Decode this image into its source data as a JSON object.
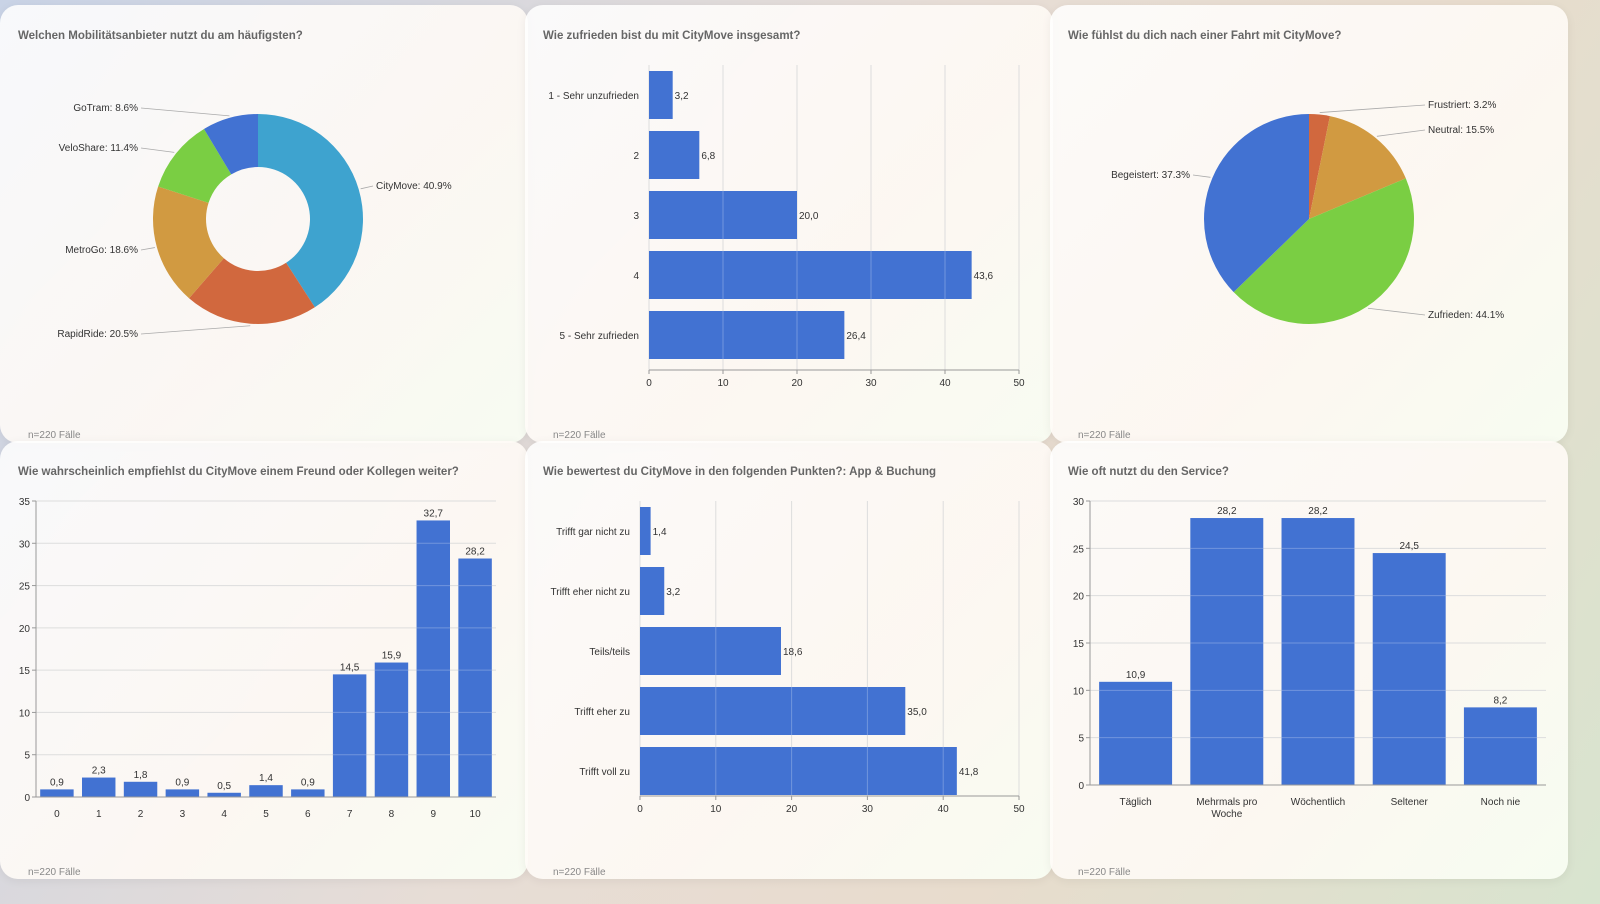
{
  "footnote": "n=220 Fälle",
  "colors": {
    "bar": "#4272d2",
    "grid": "#dddddd",
    "axis": "#999999"
  },
  "chart_data": [
    {
      "id": "provider",
      "type": "pie",
      "donut": true,
      "title": "Welchen Mobilitätsanbieter nutzt du am häufigsten?",
      "slices": [
        {
          "label": "CityMove: 40.9%",
          "value": 40.9,
          "color": "#3ea3cf"
        },
        {
          "label": "RapidRide: 20.5%",
          "value": 20.5,
          "color": "#d1683e"
        },
        {
          "label": "MetroGo: 18.6%",
          "value": 18.6,
          "color": "#d19a41"
        },
        {
          "label": "VeloShare: 11.4%",
          "value": 11.4,
          "color": "#7ace43"
        },
        {
          "label": "GoTram: 8.6%",
          "value": 8.6,
          "color": "#4272d2"
        }
      ]
    },
    {
      "id": "satisfaction",
      "type": "bar",
      "orientation": "horizontal",
      "title": "Wie zufrieden bist du mit CityMove insgesamt?",
      "categories": [
        "1 - Sehr unzufrieden",
        "2",
        "3",
        "4",
        "5 - Sehr zufrieden"
      ],
      "values": [
        3.2,
        6.8,
        20.0,
        43.6,
        26.4
      ],
      "value_labels": [
        "3,2",
        "6,8",
        "20,0",
        "43,6",
        "26,4"
      ],
      "xlim": [
        0,
        50
      ],
      "ticks": [
        "0",
        "10",
        "20",
        "30",
        "40",
        "50"
      ]
    },
    {
      "id": "feeling",
      "type": "pie",
      "donut": false,
      "title": "Wie fühlst du dich nach einer Fahrt mit CityMove?",
      "slices": [
        {
          "label": "Frustriert: 3.2%",
          "value": 3.2,
          "color": "#d1683e"
        },
        {
          "label": "Neutral: 15.5%",
          "value": 15.5,
          "color": "#d19a41"
        },
        {
          "label": "Zufrieden: 44.1%",
          "value": 44.1,
          "color": "#7ace43"
        },
        {
          "label": "Begeistert: 37.3%",
          "value": 37.3,
          "color": "#4272d2"
        }
      ]
    },
    {
      "id": "recommend",
      "type": "bar",
      "orientation": "vertical",
      "title": "Wie wahrscheinlich empfiehlst du CityMove einem Freund oder Kollegen weiter?",
      "categories": [
        "0",
        "1",
        "2",
        "3",
        "4",
        "5",
        "6",
        "7",
        "8",
        "9",
        "10"
      ],
      "values": [
        0.9,
        2.3,
        1.8,
        0.9,
        0.5,
        1.4,
        0.9,
        14.5,
        15.9,
        32.7,
        28.2
      ],
      "value_labels": [
        "0,9",
        "2,3",
        "1,8",
        "0,9",
        "0,5",
        "1,4",
        "0,9",
        "14,5",
        "15,9",
        "32,7",
        "28,2"
      ],
      "ylim": [
        0,
        35
      ],
      "ticks": [
        "0",
        "5",
        "10",
        "15",
        "20",
        "25",
        "30",
        "35"
      ]
    },
    {
      "id": "app",
      "type": "bar",
      "orientation": "horizontal",
      "title": "Wie bewertest du CityMove in den folgenden Punkten?: App & Buchung",
      "categories": [
        "Trifft gar nicht zu",
        "Trifft eher nicht zu",
        "Teils/teils",
        "Trifft eher zu",
        "Trifft voll zu"
      ],
      "values": [
        1.4,
        3.2,
        18.6,
        35.0,
        41.8
      ],
      "value_labels": [
        "1,4",
        "3,2",
        "18,6",
        "35,0",
        "41,8"
      ],
      "xlim": [
        0,
        50
      ],
      "ticks": [
        "0",
        "10",
        "20",
        "30",
        "40",
        "50"
      ]
    },
    {
      "id": "frequency",
      "type": "bar",
      "orientation": "vertical",
      "title": "Wie oft nutzt du den Service?",
      "categories": [
        "Täglich",
        "Mehrmals pro Woche",
        "Wöchentlich",
        "Seltener",
        "Noch nie"
      ],
      "values": [
        10.9,
        28.2,
        28.2,
        24.5,
        8.2
      ],
      "value_labels": [
        "10,9",
        "28,2",
        "28,2",
        "24,5",
        "8,2"
      ],
      "ylim": [
        0,
        30
      ],
      "ticks": [
        "0",
        "5",
        "10",
        "15",
        "20",
        "25",
        "30"
      ]
    }
  ]
}
